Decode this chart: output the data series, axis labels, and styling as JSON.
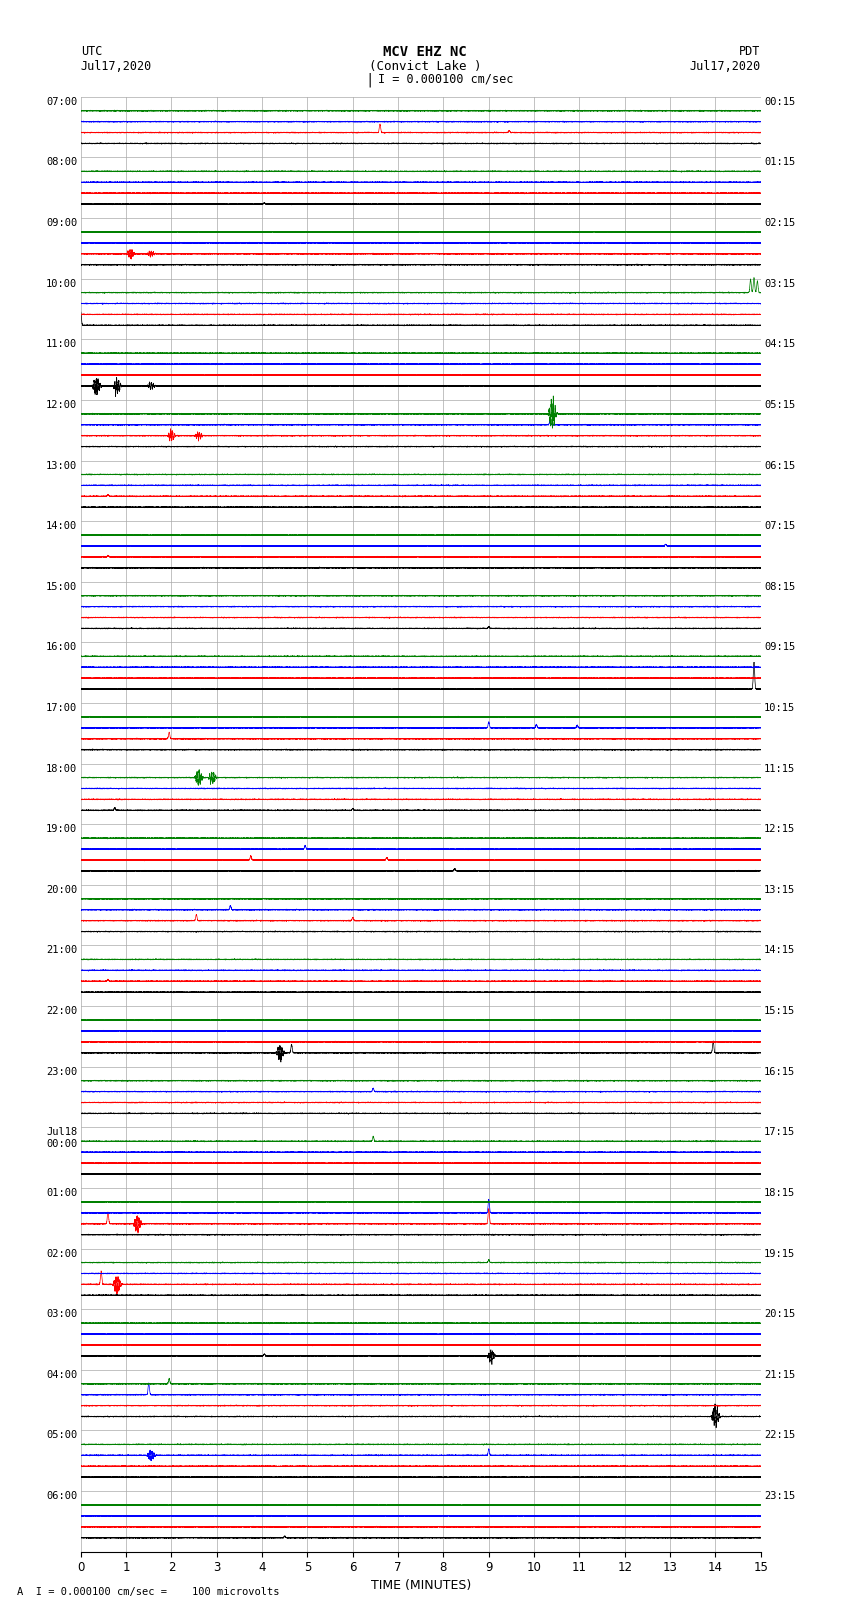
{
  "title_line1": "MCV EHZ NC",
  "title_line2": "(Convict Lake )",
  "title_scale": "I = 0.000100 cm/sec",
  "label_left_top1": "UTC",
  "label_left_top2": "Jul17,2020",
  "label_right_top1": "PDT",
  "label_right_top2": "Jul17,2020",
  "xlabel": "TIME (MINUTES)",
  "footer": "A  I = 0.000100 cm/sec =    100 microvolts",
  "bg_color": "#ffffff",
  "grid_color": "#aaaaaa",
  "trace_colors": [
    "black",
    "red",
    "blue",
    "green"
  ],
  "num_trace_groups": 24,
  "traces_per_group": 4,
  "xlim": [
    0,
    15
  ],
  "xticks": [
    0,
    1,
    2,
    3,
    4,
    5,
    6,
    7,
    8,
    9,
    10,
    11,
    12,
    13,
    14,
    15
  ],
  "left_labels": [
    "07:00",
    "08:00",
    "09:00",
    "10:00",
    "11:00",
    "12:00",
    "13:00",
    "14:00",
    "15:00",
    "16:00",
    "17:00",
    "18:00",
    "19:00",
    "20:00",
    "21:00",
    "22:00",
    "23:00",
    "Jul18\n00:00",
    "01:00",
    "02:00",
    "03:00",
    "04:00",
    "05:00",
    "06:00"
  ],
  "right_labels": [
    "00:15",
    "01:15",
    "02:15",
    "03:15",
    "04:15",
    "05:15",
    "06:15",
    "07:15",
    "08:15",
    "09:15",
    "10:15",
    "11:15",
    "12:15",
    "13:15",
    "14:15",
    "15:15",
    "16:15",
    "17:15",
    "18:15",
    "19:15",
    "20:15",
    "21:15",
    "22:15",
    "23:15"
  ]
}
